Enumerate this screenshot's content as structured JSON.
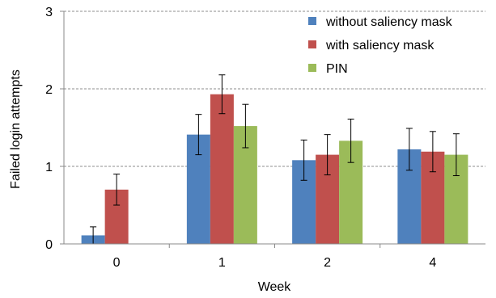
{
  "chart_data": {
    "type": "bar",
    "title": "",
    "xlabel": "Week",
    "ylabel": "Failed login attempts",
    "categories": [
      "0",
      "1",
      "2",
      "4"
    ],
    "ylim": [
      0,
      3
    ],
    "yticks": [
      "0",
      "1",
      "2",
      "3"
    ],
    "grid": "horizontal-dashed",
    "legend_position": "top-right",
    "error_bars": true,
    "series": [
      {
        "name": "without saliency mask",
        "color": "#4F81BD",
        "values": [
          0.11,
          1.41,
          1.08,
          1.22
        ],
        "errors": [
          0.11,
          0.26,
          0.26,
          0.27
        ]
      },
      {
        "name": "with saliency mask",
        "color": "#C0504D",
        "values": [
          0.7,
          1.93,
          1.15,
          1.19
        ],
        "errors": [
          0.2,
          0.25,
          0.26,
          0.26
        ]
      },
      {
        "name": "PIN",
        "color": "#9BBB59",
        "values": [
          0.0,
          1.52,
          1.33,
          1.15
        ],
        "errors": [
          0.0,
          0.28,
          0.28,
          0.27
        ]
      }
    ]
  }
}
